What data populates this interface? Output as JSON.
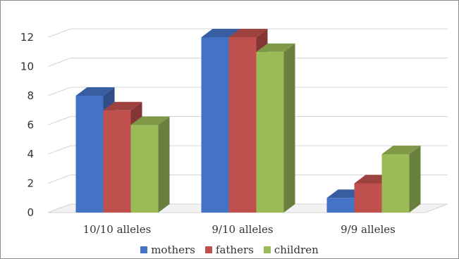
{
  "chart_data": {
    "type": "bar",
    "subtype": "3d-clustered-column",
    "categories": [
      "10/10 alleles",
      "9/10 alleles",
      "9/9 alleles"
    ],
    "series": [
      {
        "name": "mothers",
        "values": [
          8,
          12,
          1
        ],
        "color": "#4472c4"
      },
      {
        "name": "fathers",
        "values": [
          7,
          12,
          2
        ],
        "color": "#c0504d"
      },
      {
        "name": "children",
        "values": [
          6,
          11,
          4
        ],
        "color": "#9bbb59"
      }
    ],
    "y_ticks": [
      0,
      2,
      4,
      6,
      8,
      10,
      12
    ],
    "ylim": [
      0,
      12
    ],
    "grid": true,
    "legend_position": "bottom",
    "title": "",
    "xlabel": "",
    "ylabel": ""
  },
  "legend": {
    "items": [
      {
        "label": "mothers",
        "color": "#4472c4"
      },
      {
        "label": "fathers",
        "color": "#c0504d"
      },
      {
        "label": "children",
        "color": "#9bbb59"
      }
    ]
  }
}
